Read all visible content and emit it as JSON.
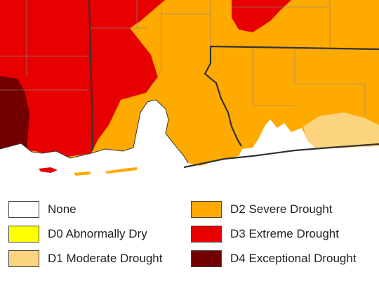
{
  "legend": {
    "items": [
      {
        "id": "none",
        "label": "None",
        "color": "#ffffff"
      },
      {
        "id": "d0",
        "label": "D0 Abnormally Dry",
        "color": "#ffff00"
      },
      {
        "id": "d1",
        "label": "D1 Moderate Drought",
        "color": "#fcd37f"
      },
      {
        "id": "d2",
        "label": "D2 Severe Drought",
        "color": "#ffaa00"
      },
      {
        "id": "d3",
        "label": "D3 Extreme Drought",
        "color": "#e60000"
      },
      {
        "id": "d4",
        "label": "D4 Exceptional Drought",
        "color": "#730000"
      }
    ]
  }
}
